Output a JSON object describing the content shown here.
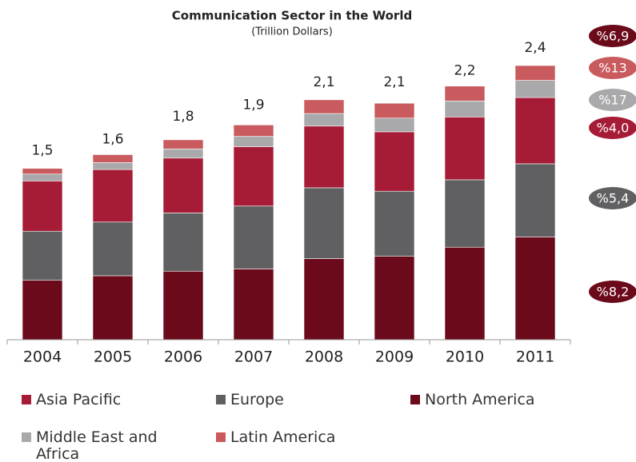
{
  "chart_data": {
    "type": "stacked_bar",
    "title": "Communication Sector in the World",
    "subtitle": "(Trillion Dollars)",
    "categories": [
      "2004",
      "2005",
      "2006",
      "2007",
      "2008",
      "2009",
      "2010",
      "2011"
    ],
    "series": [
      {
        "name": "North America",
        "color": "#6b0a1a",
        "values": [
          0.52,
          0.56,
          0.6,
          0.62,
          0.71,
          0.73,
          0.81,
          0.9
        ],
        "growth_label": "%8,2"
      },
      {
        "name": "Europe",
        "color": "#606062",
        "values": [
          0.43,
          0.47,
          0.51,
          0.55,
          0.62,
          0.57,
          0.59,
          0.64
        ],
        "growth_label": "%5,4"
      },
      {
        "name": "Asia Pacific",
        "color": "#a61c36",
        "values": [
          0.44,
          0.46,
          0.48,
          0.52,
          0.54,
          0.52,
          0.55,
          0.58
        ],
        "growth_label": "%4,0"
      },
      {
        "name": "Middle East and Africa",
        "color": "#a9a9ab",
        "values": [
          0.06,
          0.06,
          0.08,
          0.09,
          0.11,
          0.12,
          0.14,
          0.15
        ],
        "growth_label": "%17"
      },
      {
        "name": "Latin America",
        "color": "#c95a5e",
        "values": [
          0.05,
          0.07,
          0.08,
          0.1,
          0.12,
          0.13,
          0.13,
          0.13
        ],
        "growth_label": "%13"
      }
    ],
    "totals": [
      1.5,
      1.6,
      1.8,
      1.9,
      2.1,
      2.1,
      2.2,
      2.4
    ],
    "total_labels": [
      "1,5",
      "1,6",
      "1,8",
      "1,9",
      "2,1",
      "2,1",
      "2,2",
      "2,4"
    ],
    "total_growth_label": "%6,9",
    "total_growth_color": "#6b0a1a"
  }
}
